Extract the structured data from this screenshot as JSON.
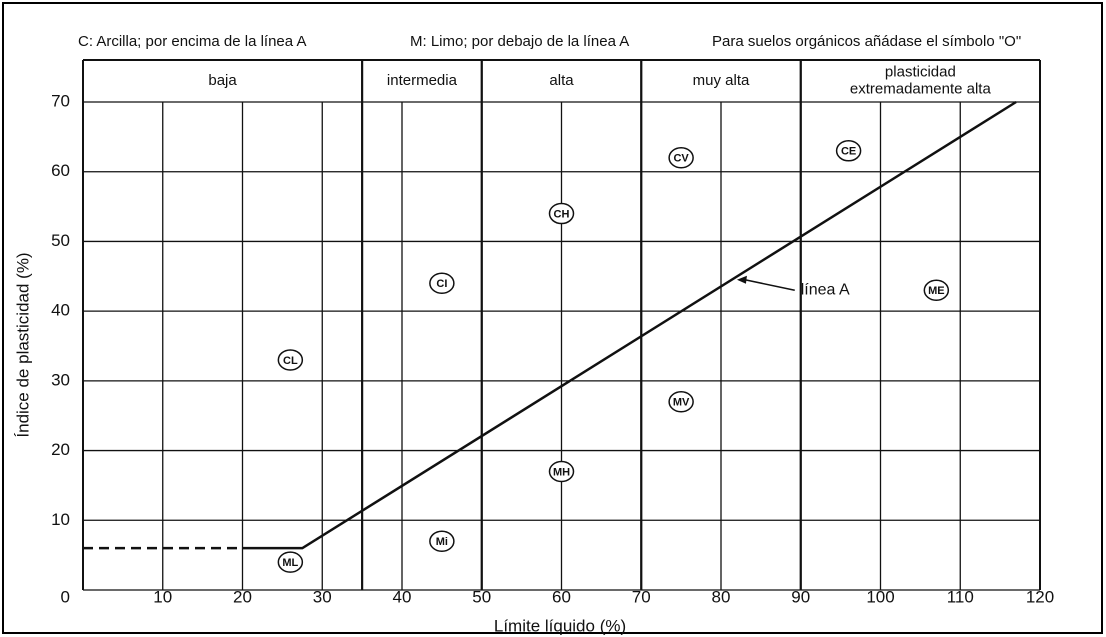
{
  "chart_data": {
    "type": "line",
    "notes": [
      "C: Arcilla; por encima de la línea A",
      "M: Limo; por debajo de la línea A",
      "Para suelos orgánicos añádase el símbolo \"O\""
    ],
    "x_label": "Límite líquido (%)",
    "y_label": "Índice de plasticidad (%)",
    "xlim": [
      0,
      120
    ],
    "ylim": [
      0,
      70
    ],
    "xticks": [
      10,
      20,
      30,
      40,
      50,
      60,
      70,
      80,
      90,
      100,
      110,
      120
    ],
    "yticks": [
      0,
      10,
      20,
      30,
      40,
      50,
      60,
      70
    ],
    "grid": true,
    "color": "#111111",
    "zones": [
      {
        "label": [
          "baja"
        ],
        "from": 0,
        "to": 35
      },
      {
        "label": [
          "intermedia"
        ],
        "from": 35,
        "to": 50
      },
      {
        "label": [
          "alta"
        ],
        "from": 50,
        "to": 70
      },
      {
        "label": [
          "muy alta"
        ],
        "from": 70,
        "to": 90
      },
      {
        "label": [
          "plasticidad",
          "extremadamente alta"
        ],
        "from": 90,
        "to": 120
      }
    ],
    "lines": [
      {
        "x": [
          0,
          20
        ],
        "values": [
          6,
          6
        ],
        "dashed": true
      },
      {
        "x": [
          20,
          27.5,
          117
        ],
        "values": [
          6,
          6,
          70
        ],
        "dashed": false
      }
    ],
    "points": [
      {
        "label": "CL",
        "x": 26,
        "y": 33
      },
      {
        "label": "ML",
        "x": 26,
        "y": 4
      },
      {
        "label": "CI",
        "x": 45,
        "y": 44
      },
      {
        "label": "Mi",
        "x": 45,
        "y": 7
      },
      {
        "label": "CH",
        "x": 60,
        "y": 54
      },
      {
        "label": "MH",
        "x": 60,
        "y": 17
      },
      {
        "label": "CV",
        "x": 75,
        "y": 62
      },
      {
        "label": "MV",
        "x": 75,
        "y": 27
      },
      {
        "label": "CE",
        "x": 96,
        "y": 63
      },
      {
        "label": "ME",
        "x": 107,
        "y": 43
      }
    ],
    "annotations": [
      {
        "text": "línea A",
        "x": 90,
        "y": 43,
        "arrow_to": [
          82,
          44.5
        ]
      }
    ]
  }
}
